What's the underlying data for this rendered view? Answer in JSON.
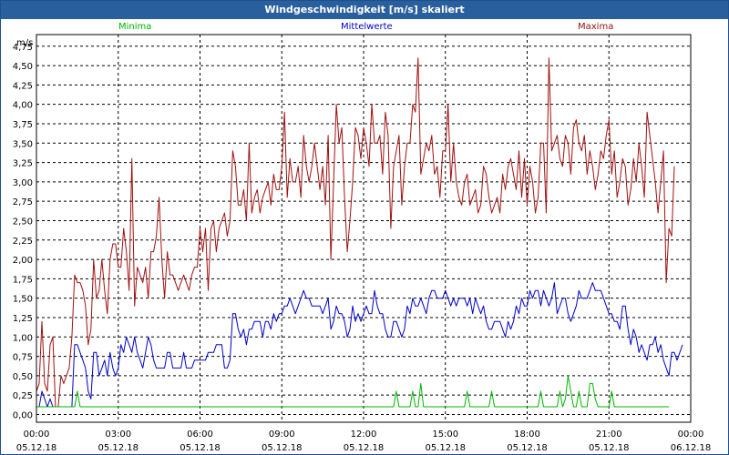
{
  "window": {
    "title": "Windgeschwindigkeit [m/s] skaliert"
  },
  "legend": {
    "min_label": "Minima",
    "mean_label": "Mittelwerte",
    "max_label": "Maxima"
  },
  "colors": {
    "min": "#00b400",
    "mean": "#0000c8",
    "max": "#a01010",
    "grid": "#000000",
    "title_bar": "#2a5f9e"
  },
  "chart_data": {
    "type": "line",
    "title": "Windgeschwindigkeit [m/s] skaliert",
    "ylabel": "m/s",
    "ylim": [
      -0.1,
      4.9
    ],
    "yticks": [
      "0,00",
      "0,25",
      "0,50",
      "0,75",
      "1,00",
      "1,25",
      "1,50",
      "1,75",
      "2,00",
      "2,25",
      "2,50",
      "2,75",
      "3,00",
      "3,25",
      "3,50",
      "3,75",
      "4,00",
      "4,25",
      "4,50",
      "4,75"
    ],
    "ytick_values": [
      0,
      0.25,
      0.5,
      0.75,
      1,
      1.25,
      1.5,
      1.75,
      2,
      2.25,
      2.5,
      2.75,
      3,
      3.25,
      3.5,
      3.75,
      4,
      4.25,
      4.5,
      4.75
    ],
    "xticks": [
      {
        "time": "00:00",
        "date": "05.12.18"
      },
      {
        "time": "03:00",
        "date": "05.12.18"
      },
      {
        "time": "06:00",
        "date": "05.12.18"
      },
      {
        "time": "09:00",
        "date": "05.12.18"
      },
      {
        "time": "12:00",
        "date": "05.12.18"
      },
      {
        "time": "15:00",
        "date": "05.12.18"
      },
      {
        "time": "18:00",
        "date": "05.12.18"
      },
      {
        "time": "21:00",
        "date": "05.12.18"
      },
      {
        "time": "00:00",
        "date": "06.12.18"
      }
    ],
    "grid": true,
    "x_hours": [
      0,
      0.1,
      0.2,
      0.3,
      0.4,
      0.5,
      0.6,
      0.7,
      0.8,
      0.9,
      1,
      1.1,
      1.2,
      1.3,
      1.4,
      1.5,
      1.6,
      1.7,
      1.8,
      1.9,
      2,
      2.1,
      2.2,
      2.3,
      2.4,
      2.5,
      2.6,
      2.7,
      2.8,
      2.9,
      3,
      3.1,
      3.2,
      3.3,
      3.4,
      3.5,
      3.6,
      3.7,
      3.8,
      3.9,
      4,
      4.1,
      4.2,
      4.3,
      4.4,
      4.5,
      4.6,
      4.7,
      4.8,
      4.9,
      5,
      5.1,
      5.2,
      5.3,
      5.4,
      5.5,
      5.6,
      5.7,
      5.8,
      5.9,
      6,
      6.1,
      6.2,
      6.3,
      6.4,
      6.5,
      6.6,
      6.7,
      6.8,
      6.9,
      7,
      7.1,
      7.2,
      7.3,
      7.4,
      7.5,
      7.6,
      7.7,
      7.8,
      7.9,
      8,
      8.1,
      8.2,
      8.3,
      8.4,
      8.5,
      8.6,
      8.7,
      8.8,
      8.9,
      9,
      9.1,
      9.2,
      9.3,
      9.4,
      9.5,
      9.6,
      9.7,
      9.8,
      9.9,
      10,
      10.1,
      10.2,
      10.3,
      10.4,
      10.5,
      10.6,
      10.7,
      10.8,
      10.9,
      11,
      11.1,
      11.2,
      11.3,
      11.4,
      11.5,
      11.6,
      11.7,
      11.8,
      11.9,
      12,
      12.1,
      12.2,
      12.3,
      12.4,
      12.5,
      12.6,
      12.7,
      12.8,
      12.9,
      13,
      13.1,
      13.2,
      13.3,
      13.4,
      13.5,
      13.6,
      13.7,
      13.8,
      13.9,
      14,
      14.1,
      14.2,
      14.3,
      14.4,
      14.5,
      14.6,
      14.7,
      14.8,
      14.9,
      15,
      15.1,
      15.2,
      15.3,
      15.4,
      15.5,
      15.6,
      15.7,
      15.8,
      15.9,
      16,
      16.1,
      16.2,
      16.3,
      16.4,
      16.5,
      16.6,
      16.7,
      16.8,
      16.9,
      17,
      17.1,
      17.2,
      17.3,
      17.4,
      17.5,
      17.6,
      17.7,
      17.8,
      17.9,
      18,
      18.1,
      18.2,
      18.3,
      18.4,
      18.5,
      18.6,
      18.7,
      18.8,
      18.9,
      19,
      19.1,
      19.2,
      19.3,
      19.4,
      19.5,
      19.6,
      19.7,
      19.8,
      19.9,
      20,
      20.1,
      20.2,
      20.3,
      20.4,
      20.5,
      20.6,
      20.7,
      20.8,
      20.9,
      21,
      21.1,
      21.2,
      21.3,
      21.4,
      21.5,
      21.6,
      21.7,
      21.8,
      21.9,
      22,
      22.1,
      22.2,
      22.3,
      22.4,
      22.5,
      22.6,
      22.7,
      22.8,
      22.9,
      23,
      23.1,
      23.2,
      23.3,
      23.4,
      23.5,
      23.6,
      23.7,
      23.8,
      23.9,
      24
    ],
    "series": [
      {
        "name": "Maxima",
        "color": "#a01010",
        "values": [
          0.3,
          0.4,
          1.2,
          0.4,
          0.3,
          0.9,
          1.0,
          0.1,
          0.1,
          0.5,
          0.4,
          0.5,
          0.6,
          1.0,
          1.8,
          1.7,
          1.7,
          1.6,
          1.4,
          0.9,
          1.1,
          2.0,
          1.5,
          1.6,
          2.0,
          1.6,
          1.3,
          2.0,
          2.2,
          2.2,
          1.9,
          1.9,
          2.4,
          2.1,
          1.6,
          3.3,
          1.4,
          1.9,
          1.8,
          1.7,
          1.9,
          1.5,
          2.1,
          2.1,
          2.3,
          2.8,
          2.0,
          1.5,
          2.1,
          1.8,
          1.8,
          1.7,
          1.6,
          1.7,
          1.8,
          1.7,
          1.6,
          1.8,
          1.9,
          1.9,
          2.4,
          2.1,
          2.4,
          1.6,
          2.4,
          2.5,
          2.1,
          2.4,
          2.5,
          2.6,
          2.3,
          2.5,
          3.4,
          3.2,
          2.7,
          2.7,
          2.9,
          2.5,
          3.5,
          2.6,
          2.8,
          2.9,
          2.6,
          2.8,
          2.9,
          3.0,
          2.7,
          3.1,
          2.9,
          2.9,
          3.2,
          3.9,
          2.8,
          3.3,
          3.0,
          3.0,
          3.2,
          2.8,
          3.6,
          3.2,
          3.0,
          3.2,
          3.5,
          3.2,
          2.9,
          3.2,
          2.7,
          3.6,
          2.0,
          3.0,
          4.0,
          3.5,
          3.7,
          2.8,
          2.1,
          2.5,
          3.0,
          3.7,
          3.6,
          3.3,
          3.7,
          3.5,
          3.2,
          4.0,
          3.5,
          3.5,
          3.6,
          3.1,
          3.9,
          3.6,
          2.4,
          3.2,
          3.4,
          3.6,
          2.7,
          3.2,
          3.5,
          3.5,
          4.0,
          3.9,
          4.6,
          3.1,
          3.3,
          3.5,
          3.4,
          3.6,
          3.1,
          3.2,
          2.8,
          3.4,
          3.4,
          4.0,
          3.0,
          3.5,
          3.0,
          2.8,
          2.7,
          3.0,
          3.1,
          2.7,
          2.8,
          2.9,
          2.6,
          2.7,
          3.2,
          3.1,
          2.8,
          2.6,
          2.7,
          2.8,
          2.6,
          3.1,
          2.9,
          3.2,
          3.3,
          3.1,
          2.9,
          3.4,
          2.8,
          3.3,
          2.7,
          3.2,
          3.0,
          2.6,
          2.8,
          3.5,
          3.5,
          2.6,
          4.6,
          3.4,
          3.5,
          3.6,
          3.3,
          3.2,
          3.6,
          3.5,
          3.1,
          3.7,
          3.8,
          3.5,
          3.4,
          3.6,
          3.1,
          3.4,
          3.2,
          2.9,
          3.1,
          3.4,
          3.3,
          3.6,
          3.8,
          3.1,
          3.4,
          2.8,
          3.0,
          3.3,
          3.2,
          2.7,
          2.9,
          3.3,
          3.0,
          3.5,
          3.2,
          2.8,
          3.9,
          3.6,
          3.3,
          3.0,
          2.6,
          3.0,
          3.4,
          1.7,
          2.4,
          2.3,
          3.2
        ]
      },
      {
        "name": "Mittelwerte",
        "color": "#0000c8",
        "values": [
          0.1,
          0.1,
          0.3,
          0.2,
          0.1,
          0.2,
          0.1,
          0.1,
          0.1,
          0.1,
          0.1,
          0.1,
          0.1,
          0.1,
          0.9,
          0.9,
          0.8,
          0.7,
          0.6,
          0.3,
          0.2,
          0.8,
          0.8,
          0.5,
          0.6,
          0.7,
          0.5,
          0.8,
          0.6,
          0.5,
          0.6,
          0.9,
          0.8,
          1.0,
          0.9,
          0.8,
          1.0,
          0.8,
          0.7,
          0.6,
          0.8,
          1.0,
          0.9,
          0.7,
          0.6,
          0.6,
          0.6,
          0.6,
          0.8,
          0.8,
          0.6,
          0.6,
          0.6,
          0.6,
          0.8,
          0.6,
          0.6,
          0.6,
          0.7,
          0.7,
          0.7,
          0.7,
          0.7,
          0.8,
          0.8,
          0.8,
          0.9,
          0.9,
          0.9,
          0.6,
          0.6,
          0.7,
          1.3,
          1.3,
          1.1,
          1.0,
          1.1,
          0.9,
          1.1,
          1.1,
          1.2,
          1.2,
          1.2,
          1.0,
          1.2,
          1.2,
          1.1,
          1.3,
          1.2,
          1.3,
          1.3,
          1.4,
          1.4,
          1.5,
          1.4,
          1.3,
          1.4,
          1.5,
          1.6,
          1.5,
          1.5,
          1.4,
          1.4,
          1.4,
          1.4,
          1.3,
          1.4,
          1.5,
          1.1,
          1.2,
          1.4,
          1.3,
          1.3,
          1.2,
          1.0,
          1.1,
          1.4,
          1.2,
          1.3,
          1.2,
          1.3,
          1.4,
          1.3,
          1.3,
          1.6,
          1.4,
          1.3,
          1.3,
          1.1,
          1.0,
          1.0,
          1.2,
          1.2,
          1.1,
          1.0,
          1.1,
          1.4,
          1.3,
          1.5,
          1.4,
          1.4,
          1.5,
          1.4,
          1.3,
          1.5,
          1.6,
          1.6,
          1.5,
          1.5,
          1.5,
          1.6,
          1.5,
          1.4,
          1.5,
          1.4,
          1.5,
          1.5,
          1.5,
          1.4,
          1.5,
          1.3,
          1.5,
          1.4,
          1.3,
          1.4,
          1.2,
          1.1,
          1.1,
          1.2,
          1.2,
          1.2,
          1.1,
          1.0,
          1.2,
          1.1,
          1.2,
          1.4,
          1.3,
          1.5,
          1.4,
          1.4,
          1.6,
          1.5,
          1.6,
          1.6,
          1.4,
          1.6,
          1.5,
          1.4,
          1.5,
          1.7,
          1.3,
          1.4,
          1.5,
          1.5,
          1.3,
          1.2,
          1.3,
          1.4,
          1.6,
          1.5,
          1.5,
          1.5,
          1.6,
          1.7,
          1.6,
          1.6,
          1.6,
          1.5,
          1.4,
          1.3,
          1.3,
          1.2,
          1.2,
          1.1,
          1.4,
          1.4,
          1.1,
          0.9,
          1.1,
          1.0,
          0.8,
          0.9,
          0.8,
          0.7,
          0.9,
          0.9,
          1.0,
          0.8,
          0.9,
          0.7,
          0.6,
          0.5,
          0.8,
          0.8,
          0.7,
          0.8,
          0.9
        ]
      },
      {
        "name": "Minima",
        "color": "#00b400",
        "values": [
          0.1,
          0.1,
          0.1,
          0.1,
          0.1,
          0.1,
          0.1,
          0.1,
          0.1,
          0.1,
          0.1,
          0.1,
          0.1,
          0.1,
          0.1,
          0.3,
          0.1,
          0.1,
          0.1,
          0.1,
          0.1,
          0.1,
          0.1,
          0.1,
          0.1,
          0.1,
          0.1,
          0.1,
          0.1,
          0.1,
          0.1,
          0.1,
          0.1,
          0.1,
          0.1,
          0.1,
          0.1,
          0.1,
          0.1,
          0.1,
          0.1,
          0.1,
          0.1,
          0.1,
          0.1,
          0.1,
          0.1,
          0.1,
          0.1,
          0.1,
          0.1,
          0.1,
          0.1,
          0.1,
          0.1,
          0.1,
          0.1,
          0.1,
          0.1,
          0.1,
          0.1,
          0.1,
          0.1,
          0.1,
          0.1,
          0.1,
          0.1,
          0.1,
          0.1,
          0.1,
          0.1,
          0.1,
          0.1,
          0.1,
          0.1,
          0.1,
          0.1,
          0.1,
          0.1,
          0.1,
          0.1,
          0.1,
          0.1,
          0.1,
          0.1,
          0.1,
          0.1,
          0.1,
          0.1,
          0.1,
          0.1,
          0.1,
          0.1,
          0.1,
          0.1,
          0.1,
          0.1,
          0.1,
          0.1,
          0.1,
          0.1,
          0.1,
          0.1,
          0.1,
          0.1,
          0.1,
          0.1,
          0.1,
          0.1,
          0.1,
          0.1,
          0.1,
          0.1,
          0.1,
          0.1,
          0.1,
          0.1,
          0.1,
          0.1,
          0.1,
          0.1,
          0.1,
          0.1,
          0.1,
          0.1,
          0.1,
          0.1,
          0.1,
          0.1,
          0.1,
          0.1,
          0.1,
          0.3,
          0.1,
          0.1,
          0.1,
          0.1,
          0.1,
          0.3,
          0.1,
          0.1,
          0.4,
          0.1,
          0.1,
          0.1,
          0.1,
          0.1,
          0.1,
          0.1,
          0.1,
          0.1,
          0.1,
          0.1,
          0.1,
          0.1,
          0.1,
          0.1,
          0.1,
          0.3,
          0.1,
          0.1,
          0.1,
          0.1,
          0.1,
          0.1,
          0.1,
          0.1,
          0.3,
          0.1,
          0.1,
          0.1,
          0.1,
          0.1,
          0.1,
          0.1,
          0.1,
          0.1,
          0.1,
          0.1,
          0.1,
          0.1,
          0.1,
          0.1,
          0.1,
          0.1,
          0.3,
          0.1,
          0.1,
          0.1,
          0.1,
          0.1,
          0.1,
          0.3,
          0.1,
          0.2,
          0.5,
          0.3,
          0.1,
          0.1,
          0.3,
          0.1,
          0.1,
          0.1,
          0.4,
          0.4,
          0.2,
          0.1,
          0.1,
          0.1,
          0.1,
          0.1,
          0.3,
          0.1,
          0.1,
          0.1,
          0.1,
          0.1,
          0.1,
          0.1,
          0.1,
          0.1,
          0.1,
          0.1,
          0.1,
          0.1,
          0.1,
          0.1,
          0.1,
          0.1,
          0.1,
          0.1,
          0.1,
          0.1
        ]
      }
    ]
  }
}
